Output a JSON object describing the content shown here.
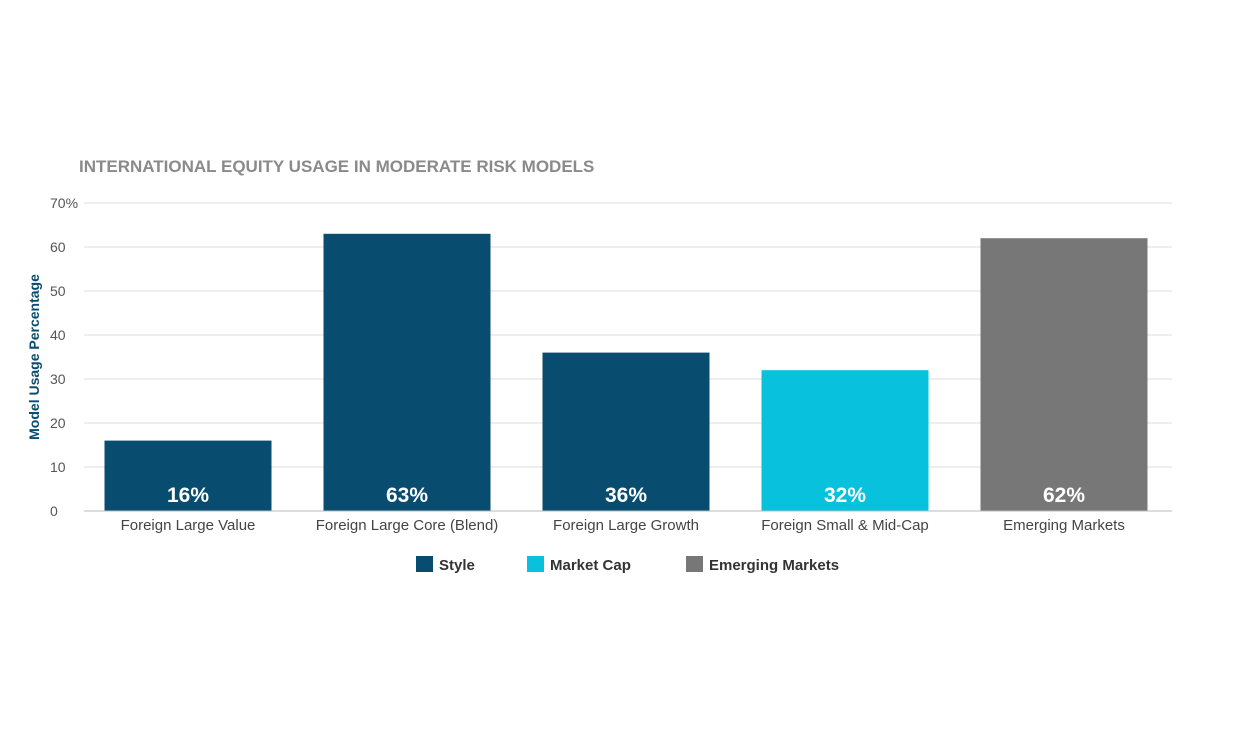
{
  "chart_data": {
    "type": "bar",
    "title": "INTERNATIONAL EQUITY USAGE IN MODERATE RISK MODELS",
    "xlabel": "",
    "ylabel": "Model Usage Percentage",
    "ylim": [
      0,
      70
    ],
    "yticks": [
      {
        "value": 0,
        "label": "0"
      },
      {
        "value": 10,
        "label": "10"
      },
      {
        "value": 20,
        "label": "20"
      },
      {
        "value": 30,
        "label": "30"
      },
      {
        "value": 40,
        "label": "40"
      },
      {
        "value": 50,
        "label": "50"
      },
      {
        "value": 60,
        "label": "60"
      },
      {
        "value": 70,
        "label": "70%"
      }
    ],
    "grid": true,
    "legend_position": "bottom-center",
    "categories": [
      "Foreign Large Value",
      "Foreign Large Core (Blend)",
      "Foreign Large Growth",
      "Foreign Small & Mid-Cap",
      "Emerging Markets"
    ],
    "values": [
      16,
      63,
      36,
      32,
      62
    ],
    "data_labels": [
      "16%",
      "63%",
      "36%",
      "32%",
      "62%"
    ],
    "bar_groups": [
      "Style",
      "Style",
      "Style",
      "Market Cap",
      "Emerging Markets"
    ],
    "legend": [
      {
        "name": "Style",
        "color": "#084c70"
      },
      {
        "name": "Market Cap",
        "color": "#08c1dd"
      },
      {
        "name": "Emerging Markets",
        "color": "#777777"
      }
    ]
  }
}
